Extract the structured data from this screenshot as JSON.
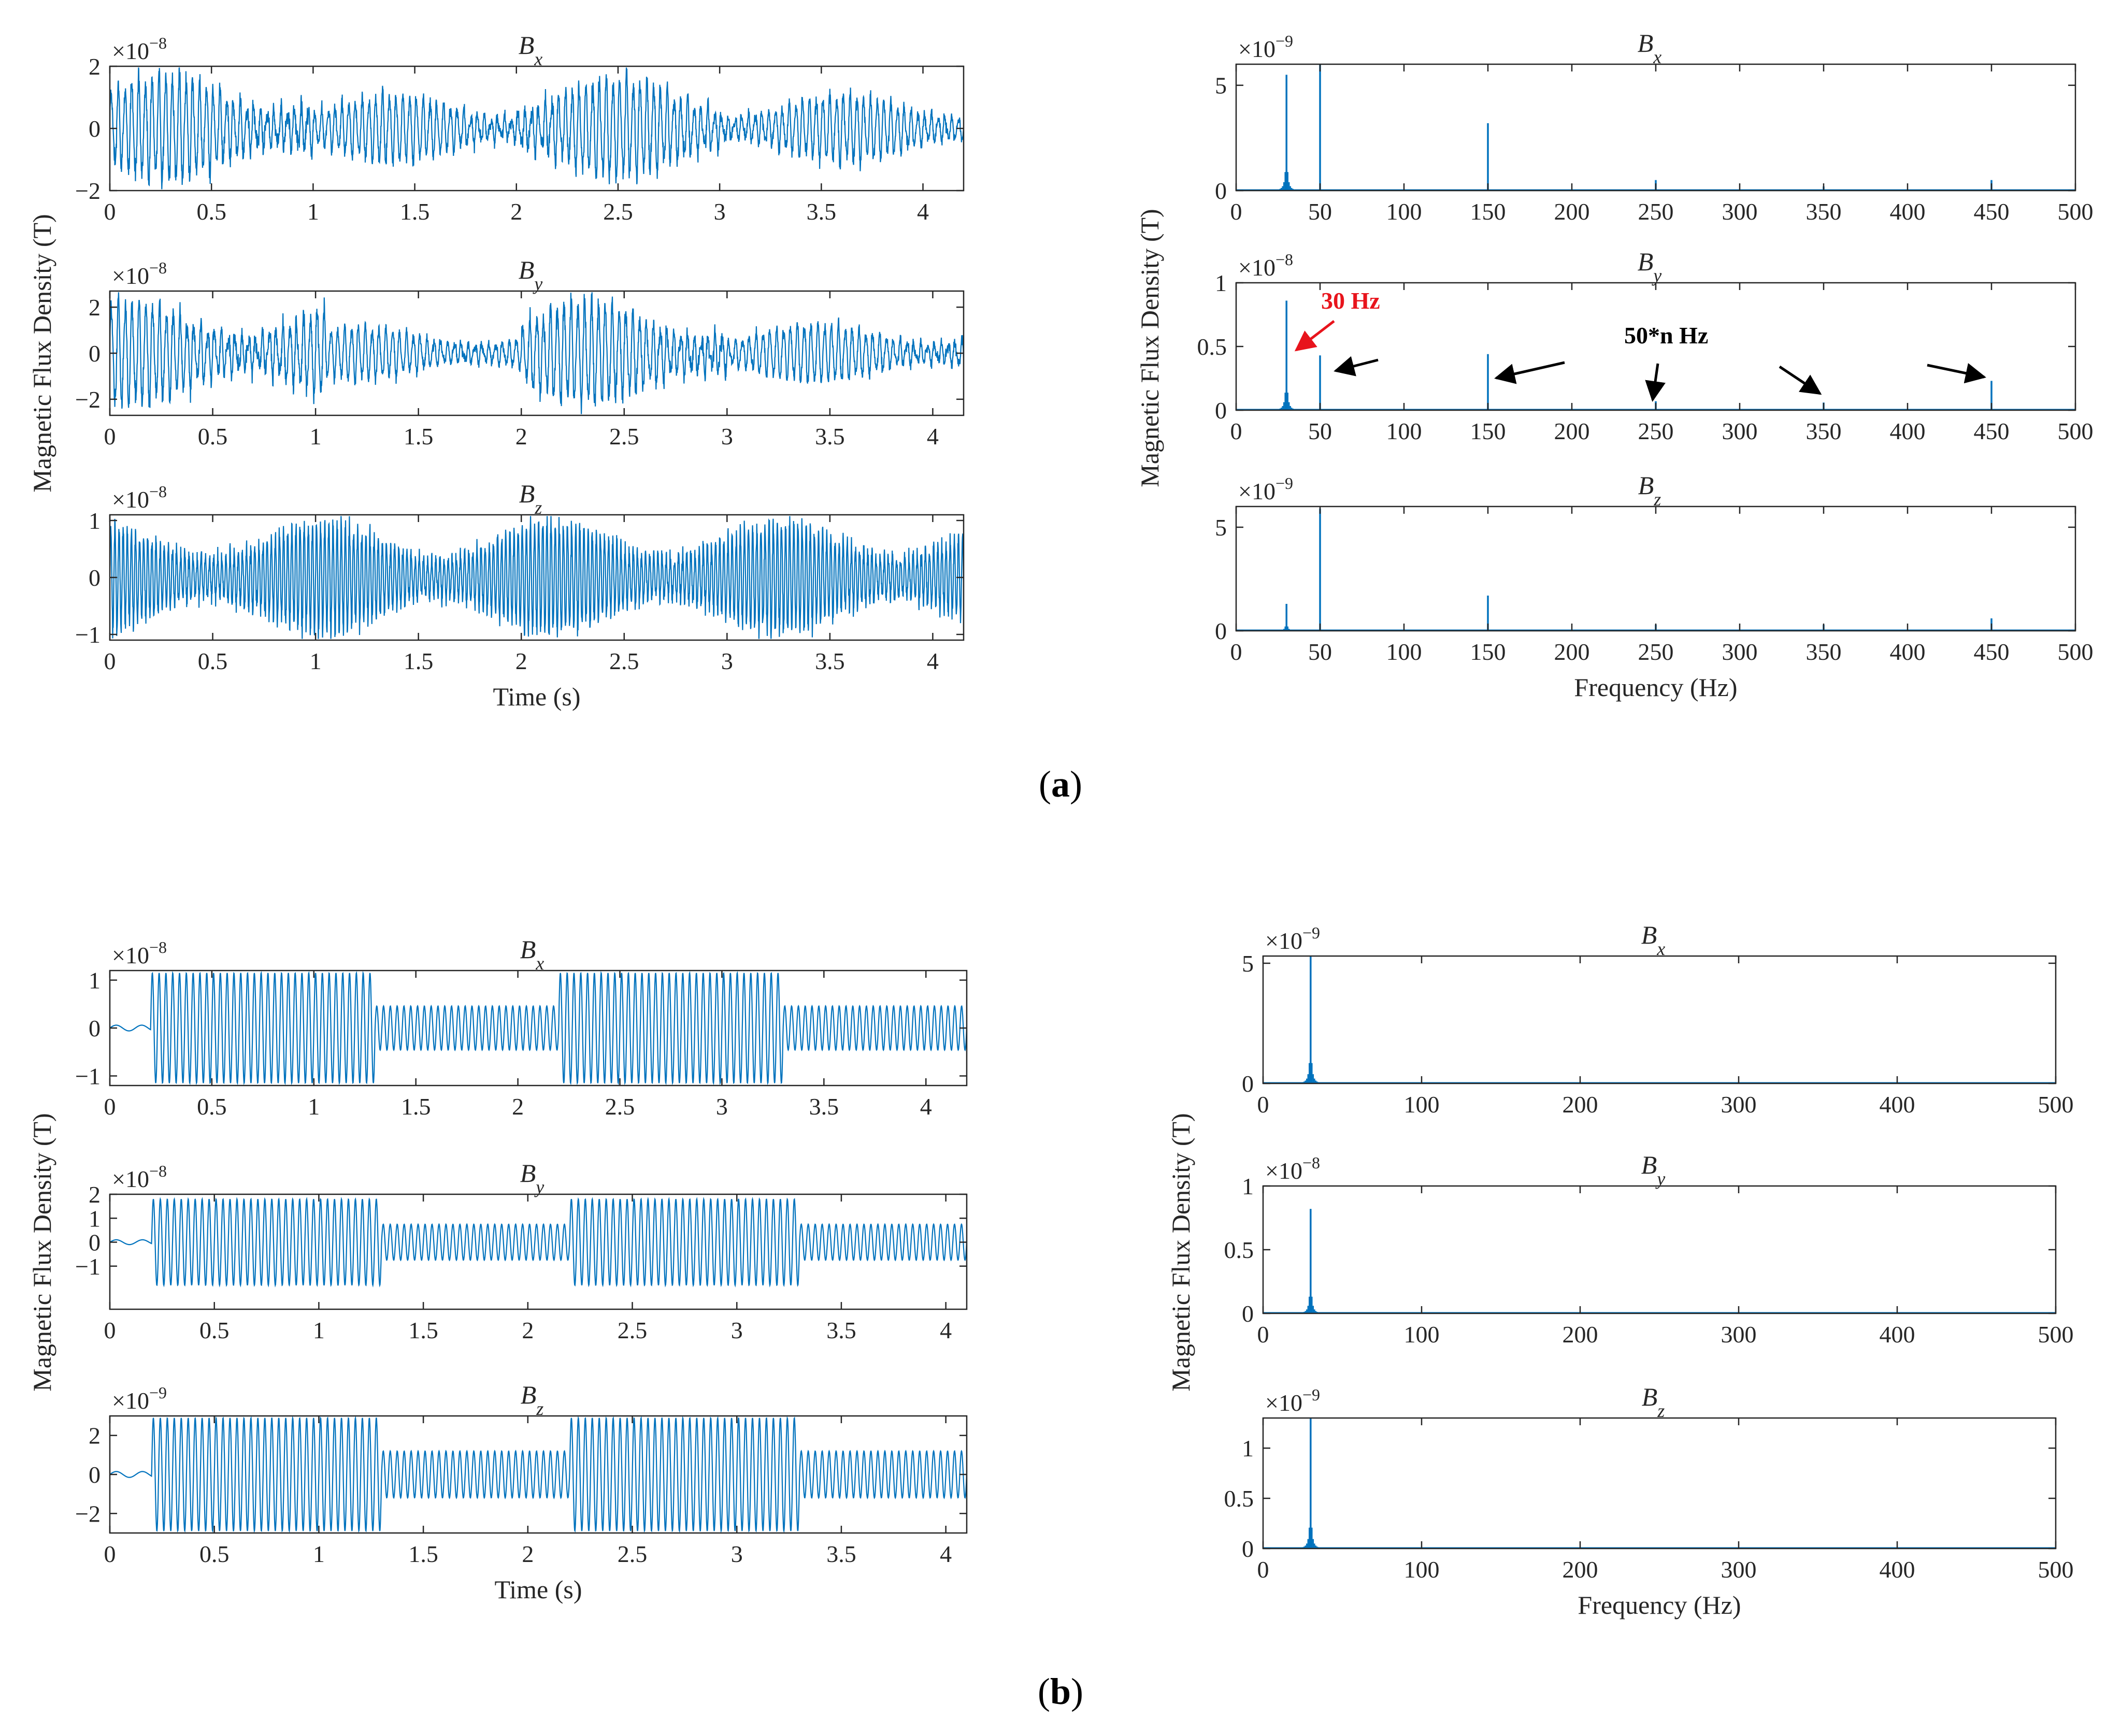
{
  "colors": {
    "series": "#0072bd",
    "axis": "#262626",
    "annotation_red": "#e8141c",
    "annotation_black": "#000000"
  },
  "captions": {
    "a": "(a)",
    "a_inner": "a",
    "b": "(b)",
    "b_inner": "b"
  },
  "annotations": {
    "hz30": "30 Hz",
    "harmonics": "50*n Hz"
  },
  "chart_data": [
    {
      "id": "a-time-bx",
      "type": "line",
      "panel": "a",
      "title": "B",
      "subscript": "x",
      "ylabel": "Magnetic Flux Density (T)",
      "xlabel": "",
      "multiplier": "×10",
      "exponent": "−8",
      "xlim": [
        0,
        4.2
      ],
      "ylim": [
        -2,
        2
      ],
      "xticks": [
        0,
        0.5,
        1,
        1.5,
        2,
        2.5,
        3,
        3.5,
        4
      ],
      "xtick_labels": [
        "0",
        "0.5",
        "1",
        "1.5",
        "2",
        "2.5",
        "3",
        "3.5",
        "4"
      ],
      "yticks": [
        -2,
        0,
        2
      ],
      "ytick_labels": [
        "−2",
        "0",
        "2"
      ],
      "signal": {
        "duration": 4.2,
        "segments": [
          {
            "t0": 0,
            "t1": 1.0,
            "amp": 1.9
          },
          {
            "t0": 1.0,
            "t1": 2.0,
            "amp": 1.2
          },
          {
            "t0": 2.0,
            "t1": 3.0,
            "amp": 1.8
          },
          {
            "t0": 3.0,
            "t1": 4.2,
            "amp": 1.2
          }
        ],
        "noisy": true,
        "dom_freq": 30,
        "ramp_start": 0
      }
    },
    {
      "id": "a-time-by",
      "type": "line",
      "panel": "a",
      "title": "B",
      "subscript": "y",
      "ylabel": "",
      "xlabel": "",
      "multiplier": "×10",
      "exponent": "−8",
      "xlim": [
        0,
        4.15
      ],
      "ylim": [
        -2.7,
        2.7
      ],
      "xticks": [
        0,
        0.5,
        1,
        1.5,
        2,
        2.5,
        3,
        3.5,
        4
      ],
      "xtick_labels": [
        "0",
        "0.5",
        "1",
        "1.5",
        "2",
        "2.5",
        "3",
        "3.5",
        "4"
      ],
      "yticks": [
        -2,
        0,
        2
      ],
      "ytick_labels": [
        "−2",
        "0",
        "2"
      ],
      "signal": {
        "duration": 4.15,
        "segments": [
          {
            "t0": 0,
            "t1": 1.05,
            "amp": 2.5
          },
          {
            "t0": 1.05,
            "t1": 2.0,
            "amp": 1.3
          },
          {
            "t0": 2.0,
            "t1": 3.0,
            "amp": 2.5
          },
          {
            "t0": 3.0,
            "t1": 4.15,
            "amp": 1.4
          }
        ],
        "noisy": true,
        "dom_freq": 30,
        "ramp_start": 0
      }
    },
    {
      "id": "a-time-bz",
      "type": "line",
      "panel": "a",
      "title": "B",
      "subscript": "z",
      "ylabel": "",
      "xlabel": "Time (s)",
      "multiplier": "×10",
      "exponent": "−8",
      "xlim": [
        0,
        4.15
      ],
      "ylim": [
        -1.1,
        1.1
      ],
      "xticks": [
        0,
        0.5,
        1,
        1.5,
        2,
        2.5,
        3,
        3.5,
        4
      ],
      "xtick_labels": [
        "0",
        "0.5",
        "1",
        "1.5",
        "2",
        "2.5",
        "3",
        "3.5",
        "4"
      ],
      "yticks": [
        -1,
        0,
        1
      ],
      "ytick_labels": [
        "−1",
        "0",
        "1"
      ],
      "signal": {
        "duration": 4.15,
        "segments": [
          {
            "t0": 0,
            "t1": 4.15,
            "amp": 1.0
          }
        ],
        "noisy": true,
        "dom_freq": 50,
        "ramp_start": 0
      }
    },
    {
      "id": "a-freq-bx",
      "type": "bar",
      "panel": "a",
      "title": "B",
      "subscript": "x",
      "ylabel": "Magnetic Flux Density (T)",
      "xlabel": "",
      "multiplier": "×10",
      "exponent": "−9",
      "xlim": [
        0,
        500
      ],
      "ylim": [
        0,
        6
      ],
      "xticks": [
        0,
        50,
        100,
        150,
        200,
        250,
        300,
        350,
        400,
        450,
        500
      ],
      "xtick_labels": [
        "0",
        "50",
        "100",
        "150",
        "200",
        "250",
        "300",
        "350",
        "400",
        "450",
        "500"
      ],
      "yticks": [
        0,
        5
      ],
      "ytick_labels": [
        "0",
        "5"
      ],
      "peaks": [
        {
          "f": 30,
          "v": 5.5,
          "spread": true
        },
        {
          "f": 50,
          "v": 6.0
        },
        {
          "f": 150,
          "v": 3.2
        },
        {
          "f": 250,
          "v": 0.5
        },
        {
          "f": 350,
          "v": 0.2
        },
        {
          "f": 450,
          "v": 0.5
        }
      ]
    },
    {
      "id": "a-freq-by",
      "type": "bar",
      "panel": "a",
      "title": "B",
      "subscript": "y",
      "ylabel": "",
      "xlabel": "",
      "multiplier": "×10",
      "exponent": "−8",
      "xlim": [
        0,
        500
      ],
      "ylim": [
        0,
        1
      ],
      "xticks": [
        0,
        50,
        100,
        150,
        200,
        250,
        300,
        350,
        400,
        450,
        500
      ],
      "xtick_labels": [
        "0",
        "50",
        "100",
        "150",
        "200",
        "250",
        "300",
        "350",
        "400",
        "450",
        "500"
      ],
      "yticks": [
        0,
        0.5,
        1
      ],
      "ytick_labels": [
        "0",
        "0.5",
        "1"
      ],
      "peaks": [
        {
          "f": 30,
          "v": 0.86,
          "spread": true
        },
        {
          "f": 50,
          "v": 0.43
        },
        {
          "f": 150,
          "v": 0.44
        },
        {
          "f": 250,
          "v": 0.07
        },
        {
          "f": 350,
          "v": 0.06
        },
        {
          "f": 450,
          "v": 0.23
        }
      ]
    },
    {
      "id": "a-freq-bz",
      "type": "bar",
      "panel": "a",
      "title": "B",
      "subscript": "z",
      "ylabel": "",
      "xlabel": "Frequency (Hz)",
      "multiplier": "×10",
      "exponent": "−9",
      "xlim": [
        0,
        500
      ],
      "ylim": [
        0,
        6
      ],
      "xticks": [
        0,
        50,
        100,
        150,
        200,
        250,
        300,
        350,
        400,
        450,
        500
      ],
      "xtick_labels": [
        "0",
        "50",
        "100",
        "150",
        "200",
        "250",
        "300",
        "350",
        "400",
        "450",
        "500"
      ],
      "yticks": [
        0,
        5
      ],
      "ytick_labels": [
        "0",
        "5"
      ],
      "peaks": [
        {
          "f": 30,
          "v": 1.3,
          "spread": true
        },
        {
          "f": 50,
          "v": 5.9
        },
        {
          "f": 150,
          "v": 1.7
        },
        {
          "f": 250,
          "v": 0.3
        },
        {
          "f": 350,
          "v": 0.3
        },
        {
          "f": 450,
          "v": 0.6
        }
      ]
    },
    {
      "id": "b-time-bx",
      "type": "line",
      "panel": "b",
      "title": "B",
      "subscript": "x",
      "ylabel": "Magnetic Flux Density (T)",
      "xlabel": "",
      "multiplier": "×10",
      "exponent": "−8",
      "xlim": [
        0,
        4.2
      ],
      "ylim": [
        -1.2,
        1.2
      ],
      "xticks": [
        0,
        0.5,
        1,
        1.5,
        2,
        2.5,
        3,
        3.5,
        4
      ],
      "xtick_labels": [
        "0",
        "0.5",
        "1",
        "1.5",
        "2",
        "2.5",
        "3",
        "3.5",
        "4"
      ],
      "yticks": [
        -1,
        0,
        1
      ],
      "ytick_labels": [
        "−1",
        "0",
        "1"
      ],
      "signal": {
        "duration": 4.2,
        "segments": [
          {
            "t0": 0,
            "t1": 0.2,
            "amp": 0.06
          },
          {
            "t0": 0.2,
            "t1": 1.3,
            "amp": 1.15
          },
          {
            "t0": 1.3,
            "t1": 2.2,
            "amp": 0.46
          },
          {
            "t0": 2.2,
            "t1": 3.3,
            "amp": 1.15
          },
          {
            "t0": 3.3,
            "t1": 4.2,
            "amp": 0.46
          }
        ],
        "noisy": false,
        "dom_freq": 30,
        "ramp_start": 0.2
      }
    },
    {
      "id": "b-time-by",
      "type": "line",
      "panel": "b",
      "title": "B",
      "subscript": "y",
      "ylabel": "",
      "xlabel": "",
      "multiplier": "×10",
      "exponent": "−8",
      "xlim": [
        0,
        4.1
      ],
      "ylim": [
        -2.8,
        2
      ],
      "xticks": [
        0,
        0.5,
        1,
        1.5,
        2,
        2.5,
        3,
        3.5,
        4
      ],
      "xtick_labels": [
        "0",
        "0.5",
        "1",
        "1.5",
        "2",
        "2.5",
        "3",
        "3.5",
        "4"
      ],
      "yticks": [
        -1,
        0,
        1,
        2
      ],
      "ytick_labels": [
        "−1",
        "0",
        "1",
        "2"
      ],
      "signal": {
        "duration": 4.1,
        "segments": [
          {
            "t0": 0,
            "t1": 0.2,
            "amp": 0.1
          },
          {
            "t0": 0.2,
            "t1": 1.3,
            "amp": 1.8
          },
          {
            "t0": 1.3,
            "t1": 2.2,
            "amp": 0.75
          },
          {
            "t0": 2.2,
            "t1": 3.3,
            "amp": 1.8
          },
          {
            "t0": 3.3,
            "t1": 4.1,
            "amp": 0.75
          }
        ],
        "noisy": false,
        "dom_freq": 30,
        "ramp_start": 0.2
      }
    },
    {
      "id": "b-time-bz",
      "type": "line",
      "panel": "b",
      "title": "B",
      "subscript": "z",
      "ylabel": "",
      "xlabel": "Time (s)",
      "multiplier": "×10",
      "exponent": "−9",
      "xlim": [
        0,
        4.1
      ],
      "ylim": [
        -3,
        3
      ],
      "xticks": [
        0,
        0.5,
        1,
        1.5,
        2,
        2.5,
        3,
        3.5,
        4
      ],
      "xtick_labels": [
        "0",
        "0.5",
        "1",
        "1.5",
        "2",
        "2.5",
        "3",
        "3.5",
        "4"
      ],
      "yticks": [
        -2,
        0,
        2
      ],
      "ytick_labels": [
        "−2",
        "0",
        "2"
      ],
      "signal": {
        "duration": 4.1,
        "segments": [
          {
            "t0": 0,
            "t1": 0.2,
            "amp": 0.15
          },
          {
            "t0": 0.2,
            "t1": 1.3,
            "amp": 2.9
          },
          {
            "t0": 1.3,
            "t1": 2.2,
            "amp": 1.2
          },
          {
            "t0": 2.2,
            "t1": 3.3,
            "amp": 2.9
          },
          {
            "t0": 3.3,
            "t1": 4.1,
            "amp": 1.2
          }
        ],
        "noisy": false,
        "dom_freq": 30,
        "ramp_start": 0.2
      }
    },
    {
      "id": "b-freq-bx",
      "type": "bar",
      "panel": "b",
      "title": "B",
      "subscript": "x",
      "ylabel": "Magnetic Flux Density (T)",
      "xlabel": "",
      "multiplier": "×10",
      "exponent": "−9",
      "xlim": [
        0,
        500
      ],
      "ylim": [
        0,
        5.3
      ],
      "xticks": [
        0,
        100,
        200,
        300,
        400,
        500
      ],
      "xtick_labels": [
        "0",
        "100",
        "200",
        "300",
        "400",
        "500"
      ],
      "yticks": [
        0,
        5
      ],
      "ytick_labels": [
        "0",
        "5"
      ],
      "peaks": [
        {
          "f": 30,
          "v": 5.3,
          "spread": true
        }
      ]
    },
    {
      "id": "b-freq-by",
      "type": "bar",
      "panel": "b",
      "title": "B",
      "subscript": "y",
      "ylabel": "",
      "xlabel": "",
      "multiplier": "×10",
      "exponent": "−8",
      "xlim": [
        0,
        500
      ],
      "ylim": [
        0,
        1
      ],
      "xticks": [
        0,
        100,
        200,
        300,
        400,
        500
      ],
      "xtick_labels": [
        "0",
        "100",
        "200",
        "300",
        "400",
        "500"
      ],
      "yticks": [
        0,
        0.5,
        1
      ],
      "ytick_labels": [
        "0",
        "0.5",
        "1"
      ],
      "peaks": [
        {
          "f": 30,
          "v": 0.82,
          "spread": true
        }
      ]
    },
    {
      "id": "b-freq-bz",
      "type": "bar",
      "panel": "b",
      "title": "B",
      "subscript": "z",
      "ylabel": "",
      "xlabel": "Frequency (Hz)",
      "multiplier": "×10",
      "exponent": "−9",
      "xlim": [
        0,
        500
      ],
      "ylim": [
        0,
        1.3
      ],
      "xticks": [
        0,
        100,
        200,
        300,
        400,
        500
      ],
      "xtick_labels": [
        "0",
        "100",
        "200",
        "300",
        "400",
        "500"
      ],
      "yticks": [
        0,
        0.5,
        1
      ],
      "ytick_labels": [
        "0",
        "0.5",
        "1"
      ],
      "peaks": [
        {
          "f": 30,
          "v": 1.3,
          "spread": true
        }
      ]
    }
  ]
}
